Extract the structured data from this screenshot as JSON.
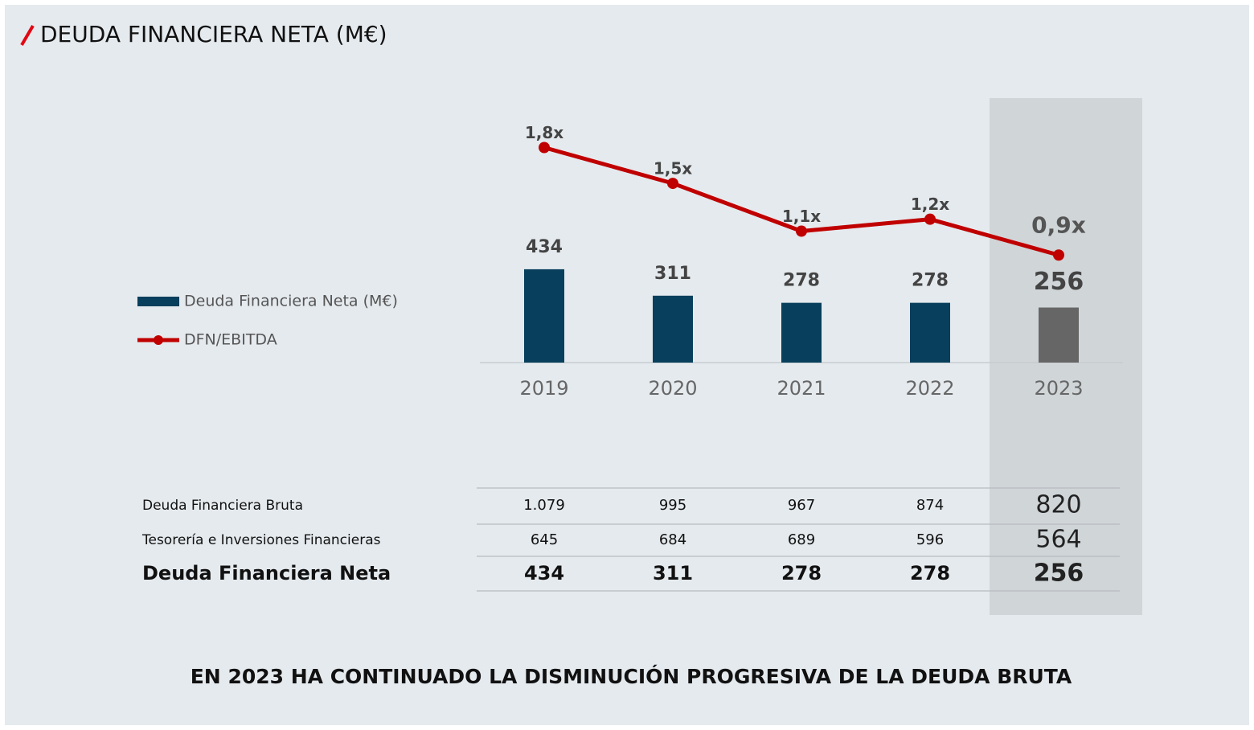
{
  "chart_data": {
    "type": "bar",
    "title": "DEUDA FINANCIERA NETA (M€)",
    "footer": "EN 2023 HA CONTINUADO LA DISMINUCIÓN PROGRESIVA DE LA DEUDA BRUTA",
    "categories": [
      "2019",
      "2020",
      "2021",
      "2022",
      "2023"
    ],
    "series": [
      {
        "name": "Deuda Financiera Neta (M€)",
        "type": "bar",
        "color": "#073f5c",
        "colors": [
          "#073f5c",
          "#073f5c",
          "#073f5c",
          "#073f5c",
          "#666666"
        ],
        "values": [
          434,
          311,
          278,
          278,
          256
        ]
      },
      {
        "name": "DFN/EBITDA",
        "type": "line",
        "axis": "y2",
        "color": "#c00000",
        "values": [
          1.8,
          1.5,
          1.1,
          1.2,
          0.9
        ],
        "value_labels": [
          "1,8x",
          "1,5x",
          "1,1x",
          "1,2x",
          "0,9x"
        ]
      }
    ],
    "ylim": [
      0,
      1200
    ],
    "y2lim": [
      0,
      2.16
    ],
    "grid": false
  },
  "table": {
    "rows": [
      {
        "label": "Deuda Financiera Bruta",
        "values": [
          "1.079",
          "995",
          "967",
          "874",
          "820"
        ]
      },
      {
        "label": "Tesorería e Inversiones Financieras",
        "values": [
          "645",
          "684",
          "689",
          "596",
          "564"
        ]
      },
      {
        "label": "Deuda Financiera Neta",
        "values": [
          "434",
          "311",
          "278",
          "278",
          "256"
        ]
      }
    ]
  }
}
